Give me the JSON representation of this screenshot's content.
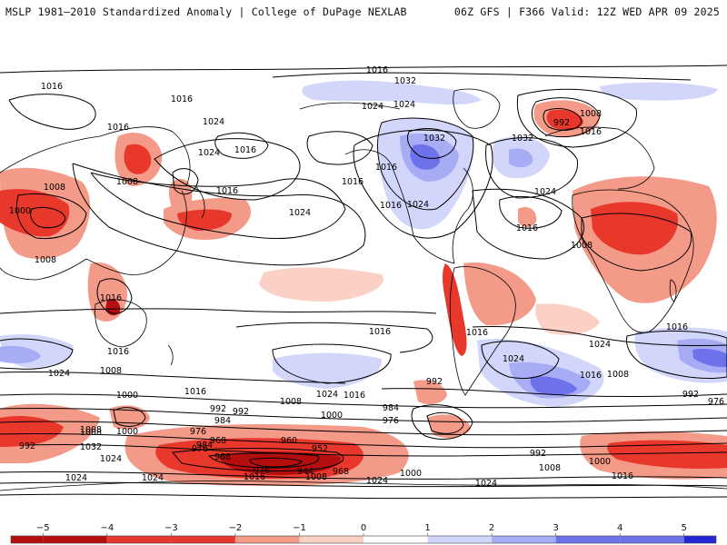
{
  "header": {
    "left": "MSLP 1981–2010 Standardized Anomaly | College of DuPage NEXLAB",
    "right": "06Z GFS | F366 Valid: 12Z WED APR 09 2025"
  },
  "colors": {
    "neg_strong": "#b50e0e",
    "neg_mid": "#e8382c",
    "neg_light": "#f39a88",
    "neg_faint": "#fbd1c6",
    "pos_faint": "#d3d6fb",
    "pos_light": "#a7acf5",
    "pos_mid": "#6d72ea",
    "pos_strong": "#2426d6",
    "land_outline": "#000000",
    "isobar": "#000000"
  },
  "map": {
    "isobar_labels": [
      "1016",
      "1016",
      "1024",
      "1032",
      "1024",
      "1016",
      "1032",
      "1016",
      "1008",
      "992",
      "1024",
      "1024",
      "1016",
      "1016",
      "1032",
      "1016",
      "1008",
      "1016",
      "1016",
      "1024",
      "1016",
      "1024",
      "1000",
      "1008",
      "1024",
      "1016",
      "1008",
      "1008",
      "1016",
      "1016",
      "1016",
      "1024",
      "1016",
      "1024",
      "1008",
      "1024",
      "1016",
      "1016",
      "1008",
      "1016",
      "1000",
      "1008",
      "1024",
      "1016",
      "992",
      "984",
      "976",
      "1008",
      "1000",
      "992",
      "1000",
      "1008",
      "992",
      "984",
      "976",
      "968",
      "960",
      "952",
      "984",
      "992",
      "976",
      "968",
      "992",
      "1032",
      "1024",
      "1016",
      "976",
      "944",
      "968",
      "1000",
      "1008",
      "1016",
      "1008",
      "1000",
      "1024",
      "1024",
      "1024",
      "1024",
      "992",
      "976"
    ]
  },
  "colorbar": {
    "ticks": [
      {
        "label": "−5",
        "value": -5
      },
      {
        "label": "−4",
        "value": -4
      },
      {
        "label": "−3",
        "value": -3
      },
      {
        "label": "−2",
        "value": -2
      },
      {
        "label": "−1",
        "value": -1
      },
      {
        "label": "0",
        "value": 0
      },
      {
        "label": "1",
        "value": 1
      },
      {
        "label": "2",
        "value": 2
      },
      {
        "label": "3",
        "value": 3
      },
      {
        "label": "4",
        "value": 4
      },
      {
        "label": "5",
        "value": 5
      }
    ],
    "range": [
      -5.5,
      5.5
    ]
  }
}
